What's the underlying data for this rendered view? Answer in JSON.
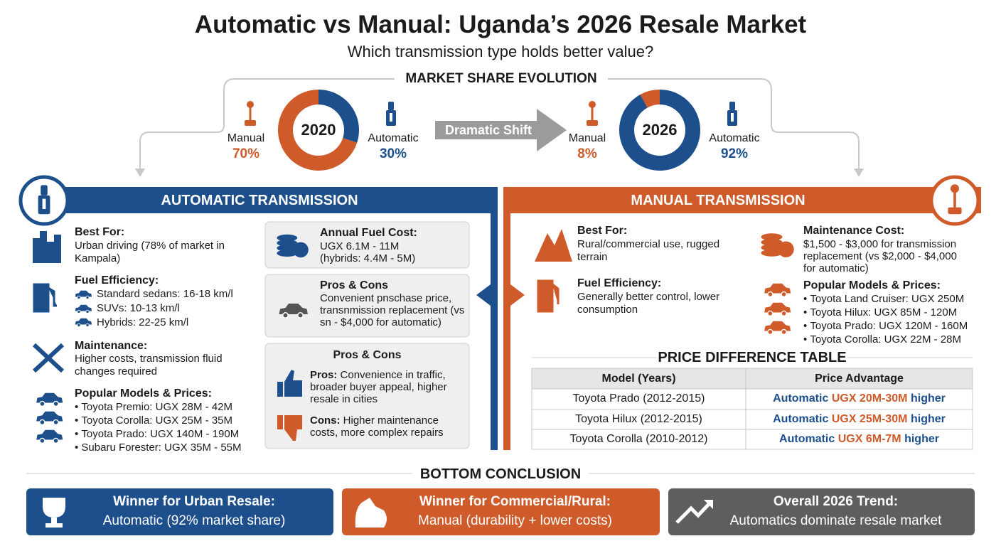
{
  "header": {
    "title": "Automatic vs Manual: Uganda’s 2026 Resale Market",
    "subtitle": "Which transmission type holds better value?"
  },
  "market_share": {
    "heading": "MARKET SHARE EVOLUTION",
    "shift_label": "Dramatic Shift"
  },
  "chart_data": [
    {
      "type": "pie",
      "title": "2020",
      "categories": [
        "Manual",
        "Automatic"
      ],
      "values": [
        70,
        30
      ],
      "value_labels": [
        "70%",
        "30%"
      ],
      "colors": [
        "#cf5a2a",
        "#1d4f8c"
      ]
    },
    {
      "type": "pie",
      "title": "2026",
      "categories": [
        "Manual",
        "Automatic"
      ],
      "values": [
        8,
        92
      ],
      "value_labels": [
        "8%",
        "92%"
      ],
      "colors": [
        "#cf5a2a",
        "#1d4f8c"
      ]
    }
  ],
  "automatic": {
    "title": "AUTOMATIC TRANSMISSION",
    "best_for": {
      "label": "Best For:",
      "text": "Urban driving (78% of market in Kampala)"
    },
    "fuel_efficiency": {
      "label": "Fuel Efficiency:",
      "items": [
        "Standard sedans: 16-18 km/l",
        "SUVs: 10-13 km/l",
        "Hybrids: 22-25 km/l"
      ]
    },
    "maintenance": {
      "label": "Maintenance:",
      "text": "Higher costs, transmission fluid changes required"
    },
    "popular_models": {
      "label": "Popular Models & Prices:",
      "items": [
        "Toyota Premio: UGX 28M - 42M",
        "Toyota Corolla: UGX 25M - 35M",
        "Toyota Prado: UGX 140M - 190M",
        "Subaru Forester: UGX 35M - 55M"
      ]
    },
    "fuel_cost_card": {
      "label": "Annual Fuel Cost:",
      "lines": [
        "UGX 6.1M - 11M",
        "(hybrids: 4.4M - 5M)"
      ]
    },
    "pros_cons_card_1": {
      "label": "Pros & Cons",
      "text": "Convenient pnschase price, transnmission replacement (vs sn - $4,000 for automatic)"
    },
    "pros_cons_card_2": {
      "label": "Pros & Cons",
      "pros_label": "Pros:",
      "pros": "Convenience in traffic, broader buyer appeal, higher resale in cities",
      "cons_label": "Cons:",
      "cons": "Higher maintenance costs, more complex repairs"
    }
  },
  "manual": {
    "title": "MANUAL TRANSMISSION",
    "best_for": {
      "label": "Best For:",
      "text": "Rural/commercial use, rugged terrain"
    },
    "fuel_efficiency": {
      "label": "Fuel Efficiency:",
      "text": "Generally better control, lower consumption"
    },
    "maintenance_cost": {
      "label": "Maintenance Cost:",
      "text": "$1,500 - $3,000 for transmission replacement (vs $2,000 - $4,000 for automatic)"
    },
    "popular_models": {
      "label": "Popular Models & Prices:",
      "items": [
        "Toyota Land Cruiser: UGX 250M",
        "Toyota Hilux: UGX 85M - 120M",
        "Toyota Prado: UGX 120M - 160M",
        "Toyota Corolla: UGX 22M - 28M"
      ]
    }
  },
  "price_table": {
    "title": "PRICE DIFFERENCE TABLE",
    "headers": [
      "Model (Years)",
      "Price Advantage"
    ],
    "rows": [
      {
        "model": "Toyota Prado (2012-2015)",
        "winner": "Automatic",
        "amount": "UGX 20M-30M",
        "suffix": "higher"
      },
      {
        "model": "Toyota Hilux (2012-2015)",
        "winner": "Automatic",
        "amount": "UGX 25M-30M",
        "suffix": "higher"
      },
      {
        "model": "Toyota Corolla (2010-2012)",
        "winner": "Automatic",
        "amount": "UGX 6M-7M",
        "suffix": "higher"
      }
    ]
  },
  "conclusion": {
    "heading": "BOTTOM CONCLUSION",
    "cards": [
      {
        "title": "Winner for Urban Resale:",
        "text": "Automatic (92% market share)"
      },
      {
        "title": "Winner for Commercial/Rural:",
        "text": "Manual (durability + lower costs)"
      },
      {
        "title": "Overall 2026 Trend:",
        "text": "Automatics dominate resale market"
      }
    ]
  }
}
